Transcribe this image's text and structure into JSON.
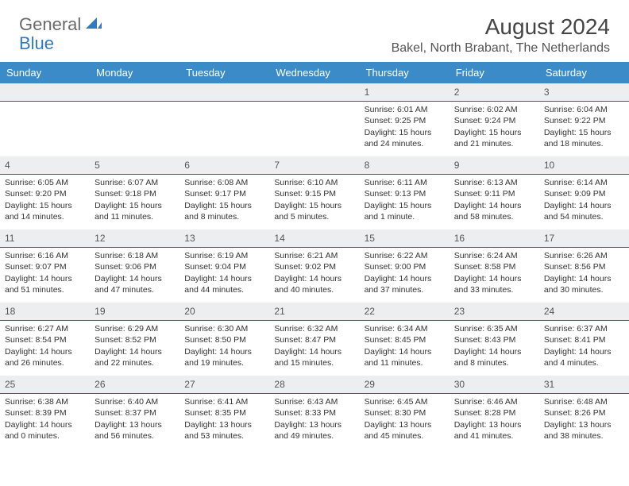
{
  "logo": {
    "general": "General",
    "blue": "Blue"
  },
  "title": "August 2024",
  "location": "Bakel, North Brabant, The Netherlands",
  "colors": {
    "header_bg": "#3b8bc9",
    "header_text": "#ffffff",
    "daynum_bg": "#eceeef",
    "daynum_border": "#2f5fa0",
    "body_text": "#333333",
    "logo_gray": "#6a6a6a",
    "logo_blue": "#2f7bbf"
  },
  "weekdays": [
    "Sunday",
    "Monday",
    "Tuesday",
    "Wednesday",
    "Thursday",
    "Friday",
    "Saturday"
  ],
  "cells": [
    {
      "day": "",
      "sunrise": "",
      "sunset": "",
      "daylight1": "",
      "daylight2": ""
    },
    {
      "day": "",
      "sunrise": "",
      "sunset": "",
      "daylight1": "",
      "daylight2": ""
    },
    {
      "day": "",
      "sunrise": "",
      "sunset": "",
      "daylight1": "",
      "daylight2": ""
    },
    {
      "day": "",
      "sunrise": "",
      "sunset": "",
      "daylight1": "",
      "daylight2": ""
    },
    {
      "day": "1",
      "sunrise": "Sunrise: 6:01 AM",
      "sunset": "Sunset: 9:25 PM",
      "daylight1": "Daylight: 15 hours",
      "daylight2": "and 24 minutes."
    },
    {
      "day": "2",
      "sunrise": "Sunrise: 6:02 AM",
      "sunset": "Sunset: 9:24 PM",
      "daylight1": "Daylight: 15 hours",
      "daylight2": "and 21 minutes."
    },
    {
      "day": "3",
      "sunrise": "Sunrise: 6:04 AM",
      "sunset": "Sunset: 9:22 PM",
      "daylight1": "Daylight: 15 hours",
      "daylight2": "and 18 minutes."
    },
    {
      "day": "4",
      "sunrise": "Sunrise: 6:05 AM",
      "sunset": "Sunset: 9:20 PM",
      "daylight1": "Daylight: 15 hours",
      "daylight2": "and 14 minutes."
    },
    {
      "day": "5",
      "sunrise": "Sunrise: 6:07 AM",
      "sunset": "Sunset: 9:18 PM",
      "daylight1": "Daylight: 15 hours",
      "daylight2": "and 11 minutes."
    },
    {
      "day": "6",
      "sunrise": "Sunrise: 6:08 AM",
      "sunset": "Sunset: 9:17 PM",
      "daylight1": "Daylight: 15 hours",
      "daylight2": "and 8 minutes."
    },
    {
      "day": "7",
      "sunrise": "Sunrise: 6:10 AM",
      "sunset": "Sunset: 9:15 PM",
      "daylight1": "Daylight: 15 hours",
      "daylight2": "and 5 minutes."
    },
    {
      "day": "8",
      "sunrise": "Sunrise: 6:11 AM",
      "sunset": "Sunset: 9:13 PM",
      "daylight1": "Daylight: 15 hours",
      "daylight2": "and 1 minute."
    },
    {
      "day": "9",
      "sunrise": "Sunrise: 6:13 AM",
      "sunset": "Sunset: 9:11 PM",
      "daylight1": "Daylight: 14 hours",
      "daylight2": "and 58 minutes."
    },
    {
      "day": "10",
      "sunrise": "Sunrise: 6:14 AM",
      "sunset": "Sunset: 9:09 PM",
      "daylight1": "Daylight: 14 hours",
      "daylight2": "and 54 minutes."
    },
    {
      "day": "11",
      "sunrise": "Sunrise: 6:16 AM",
      "sunset": "Sunset: 9:07 PM",
      "daylight1": "Daylight: 14 hours",
      "daylight2": "and 51 minutes."
    },
    {
      "day": "12",
      "sunrise": "Sunrise: 6:18 AM",
      "sunset": "Sunset: 9:06 PM",
      "daylight1": "Daylight: 14 hours",
      "daylight2": "and 47 minutes."
    },
    {
      "day": "13",
      "sunrise": "Sunrise: 6:19 AM",
      "sunset": "Sunset: 9:04 PM",
      "daylight1": "Daylight: 14 hours",
      "daylight2": "and 44 minutes."
    },
    {
      "day": "14",
      "sunrise": "Sunrise: 6:21 AM",
      "sunset": "Sunset: 9:02 PM",
      "daylight1": "Daylight: 14 hours",
      "daylight2": "and 40 minutes."
    },
    {
      "day": "15",
      "sunrise": "Sunrise: 6:22 AM",
      "sunset": "Sunset: 9:00 PM",
      "daylight1": "Daylight: 14 hours",
      "daylight2": "and 37 minutes."
    },
    {
      "day": "16",
      "sunrise": "Sunrise: 6:24 AM",
      "sunset": "Sunset: 8:58 PM",
      "daylight1": "Daylight: 14 hours",
      "daylight2": "and 33 minutes."
    },
    {
      "day": "17",
      "sunrise": "Sunrise: 6:26 AM",
      "sunset": "Sunset: 8:56 PM",
      "daylight1": "Daylight: 14 hours",
      "daylight2": "and 30 minutes."
    },
    {
      "day": "18",
      "sunrise": "Sunrise: 6:27 AM",
      "sunset": "Sunset: 8:54 PM",
      "daylight1": "Daylight: 14 hours",
      "daylight2": "and 26 minutes."
    },
    {
      "day": "19",
      "sunrise": "Sunrise: 6:29 AM",
      "sunset": "Sunset: 8:52 PM",
      "daylight1": "Daylight: 14 hours",
      "daylight2": "and 22 minutes."
    },
    {
      "day": "20",
      "sunrise": "Sunrise: 6:30 AM",
      "sunset": "Sunset: 8:50 PM",
      "daylight1": "Daylight: 14 hours",
      "daylight2": "and 19 minutes."
    },
    {
      "day": "21",
      "sunrise": "Sunrise: 6:32 AM",
      "sunset": "Sunset: 8:47 PM",
      "daylight1": "Daylight: 14 hours",
      "daylight2": "and 15 minutes."
    },
    {
      "day": "22",
      "sunrise": "Sunrise: 6:34 AM",
      "sunset": "Sunset: 8:45 PM",
      "daylight1": "Daylight: 14 hours",
      "daylight2": "and 11 minutes."
    },
    {
      "day": "23",
      "sunrise": "Sunrise: 6:35 AM",
      "sunset": "Sunset: 8:43 PM",
      "daylight1": "Daylight: 14 hours",
      "daylight2": "and 8 minutes."
    },
    {
      "day": "24",
      "sunrise": "Sunrise: 6:37 AM",
      "sunset": "Sunset: 8:41 PM",
      "daylight1": "Daylight: 14 hours",
      "daylight2": "and 4 minutes."
    },
    {
      "day": "25",
      "sunrise": "Sunrise: 6:38 AM",
      "sunset": "Sunset: 8:39 PM",
      "daylight1": "Daylight: 14 hours",
      "daylight2": "and 0 minutes."
    },
    {
      "day": "26",
      "sunrise": "Sunrise: 6:40 AM",
      "sunset": "Sunset: 8:37 PM",
      "daylight1": "Daylight: 13 hours",
      "daylight2": "and 56 minutes."
    },
    {
      "day": "27",
      "sunrise": "Sunrise: 6:41 AM",
      "sunset": "Sunset: 8:35 PM",
      "daylight1": "Daylight: 13 hours",
      "daylight2": "and 53 minutes."
    },
    {
      "day": "28",
      "sunrise": "Sunrise: 6:43 AM",
      "sunset": "Sunset: 8:33 PM",
      "daylight1": "Daylight: 13 hours",
      "daylight2": "and 49 minutes."
    },
    {
      "day": "29",
      "sunrise": "Sunrise: 6:45 AM",
      "sunset": "Sunset: 8:30 PM",
      "daylight1": "Daylight: 13 hours",
      "daylight2": "and 45 minutes."
    },
    {
      "day": "30",
      "sunrise": "Sunrise: 6:46 AM",
      "sunset": "Sunset: 8:28 PM",
      "daylight1": "Daylight: 13 hours",
      "daylight2": "and 41 minutes."
    },
    {
      "day": "31",
      "sunrise": "Sunrise: 6:48 AM",
      "sunset": "Sunset: 8:26 PM",
      "daylight1": "Daylight: 13 hours",
      "daylight2": "and 38 minutes."
    }
  ]
}
